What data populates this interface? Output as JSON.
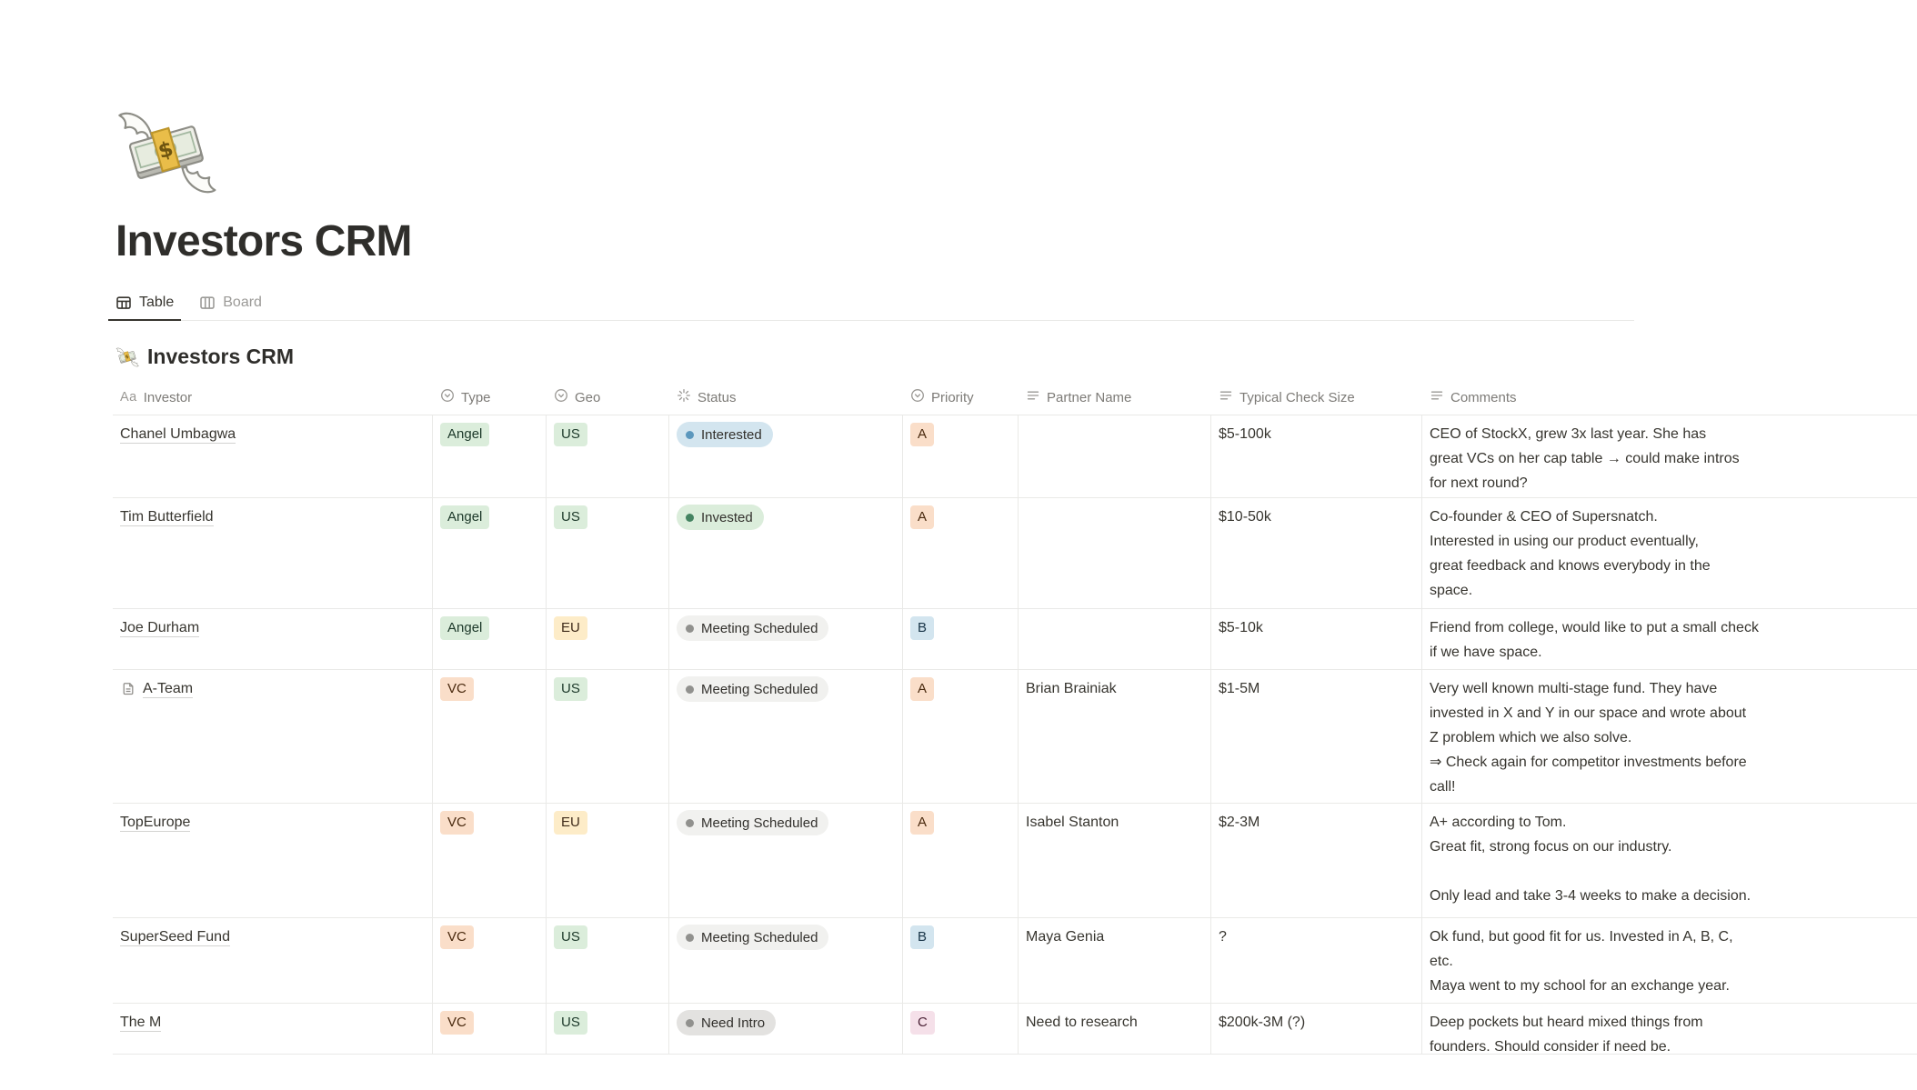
{
  "page": {
    "icon": "money-with-wings-emoji",
    "title": "Investors CRM",
    "tabs": [
      {
        "label": "Table",
        "icon": "table-view-icon",
        "active": true
      },
      {
        "label": "Board",
        "icon": "board-view-icon",
        "active": false
      }
    ]
  },
  "collection": {
    "icon": "money-with-wings-emoji",
    "title": "Investors CRM"
  },
  "table": {
    "columns": [
      {
        "key": "investor",
        "label": "Investor",
        "icon": "title-icon"
      },
      {
        "key": "type",
        "label": "Type",
        "icon": "select-icon"
      },
      {
        "key": "geo",
        "label": "Geo",
        "icon": "select-icon"
      },
      {
        "key": "status",
        "label": "Status",
        "icon": "status-icon"
      },
      {
        "key": "priority",
        "label": "Priority",
        "icon": "select-icon"
      },
      {
        "key": "partner",
        "label": "Partner Name",
        "icon": "text-icon"
      },
      {
        "key": "check",
        "label": "Typical Check Size",
        "icon": "text-icon"
      },
      {
        "key": "comments",
        "label": "Comments",
        "icon": "text-icon"
      }
    ],
    "rows": [
      {
        "name": "Chanel Umbagwa",
        "page_icon": false,
        "type": {
          "label": "Angel",
          "color": "green"
        },
        "geo": {
          "label": "US",
          "color": "green"
        },
        "status": {
          "label": "Interested",
          "color": "blue"
        },
        "priority": {
          "label": "A",
          "color": "orange"
        },
        "partner": "",
        "check": "$5-100k",
        "comments": [
          "CEO of StockX, grew 3x last year. She has",
          "great VCs on her cap table → could make intros",
          "for next round?"
        ]
      },
      {
        "name": "Tim Butterfield",
        "page_icon": false,
        "type": {
          "label": "Angel",
          "color": "green"
        },
        "geo": {
          "label": "US",
          "color": "green"
        },
        "status": {
          "label": "Invested",
          "color": "green"
        },
        "priority": {
          "label": "A",
          "color": "orange"
        },
        "partner": "",
        "check": "$10-50k",
        "comments": [
          "Co-founder & CEO of Supersnatch.",
          "Interested in using our product eventually,",
          "great feedback and knows everybody in the",
          "space."
        ]
      },
      {
        "name": "Joe Durham",
        "page_icon": false,
        "type": {
          "label": "Angel",
          "color": "green"
        },
        "geo": {
          "label": "EU",
          "color": "yellow"
        },
        "status": {
          "label": "Meeting Scheduled",
          "color": "light_gray"
        },
        "priority": {
          "label": "B",
          "color": "blue"
        },
        "partner": "",
        "check": "$5-10k",
        "comments": [
          "Friend from college, would like to put a small check",
          "if we have space."
        ]
      },
      {
        "name": "A-Team",
        "page_icon": true,
        "type": {
          "label": "VC",
          "color": "orange"
        },
        "geo": {
          "label": "US",
          "color": "green"
        },
        "status": {
          "label": "Meeting Scheduled",
          "color": "light_gray"
        },
        "priority": {
          "label": "A",
          "color": "orange"
        },
        "partner": "Brian Brainiak",
        "check": "$1-5M",
        "comments": [
          "Very well known multi-stage fund. They have",
          "invested in X and Y in our space and wrote about",
          "Z problem which we also solve.",
          "⇒ Check again for competitor investments before",
          "call!"
        ]
      },
      {
        "name": "TopEurope",
        "page_icon": false,
        "type": {
          "label": "VC",
          "color": "orange"
        },
        "geo": {
          "label": "EU",
          "color": "yellow"
        },
        "status": {
          "label": "Meeting Scheduled",
          "color": "light_gray"
        },
        "priority": {
          "label": "A",
          "color": "orange"
        },
        "partner": "Isabel Stanton",
        "check": "$2-3M",
        "comments": [
          "A+ according to Tom.",
          "Great fit, strong focus on our industry.",
          "",
          "Only lead and take 3-4 weeks to make a decision."
        ]
      },
      {
        "name": "SuperSeed Fund",
        "page_icon": false,
        "type": {
          "label": "VC",
          "color": "orange"
        },
        "geo": {
          "label": "US",
          "color": "green"
        },
        "status": {
          "label": "Meeting Scheduled",
          "color": "light_gray"
        },
        "priority": {
          "label": "B",
          "color": "blue"
        },
        "partner": "Maya Genia",
        "check": "?",
        "comments": [
          "Ok fund, but good fit for us. Invested in A, B, C,",
          "etc.",
          "Maya went to my school for an exchange year."
        ]
      },
      {
        "name": "The M",
        "page_icon": false,
        "type": {
          "label": "VC",
          "color": "orange"
        },
        "geo": {
          "label": "US",
          "color": "green"
        },
        "status": {
          "label": "Need Intro",
          "color": "gray"
        },
        "priority": {
          "label": "C",
          "color": "pink"
        },
        "partner": "Need to research",
        "check": "$200k-3M (?)",
        "comments": [
          "Deep pockets but heard mixed things from",
          "founders. Should consider if need be."
        ]
      }
    ]
  },
  "colors": {
    "chip_bg": {
      "green": "#DBEDDB",
      "orange": "#FADEC9",
      "yellow": "#FDECC8",
      "blue": "#D3E5EF",
      "pink": "#F5E0E9"
    },
    "chip_text": {
      "green": "#1C3829",
      "orange": "#49290E",
      "yellow": "#402C1B",
      "blue": "#183447",
      "pink": "#4C2337"
    },
    "status_bg": {
      "blue": "#D3E5EF",
      "green": "#DBEDDB",
      "light_gray": "#F1F1EF",
      "gray": "#E3E2E0"
    },
    "status_dot": {
      "blue": "#5B97BD",
      "green": "#448361",
      "light_gray": "#91918E",
      "gray": "#91918E"
    },
    "divider": "#E9E9E7",
    "header_text": "#7D7B77",
    "body_text": "#37352F"
  }
}
